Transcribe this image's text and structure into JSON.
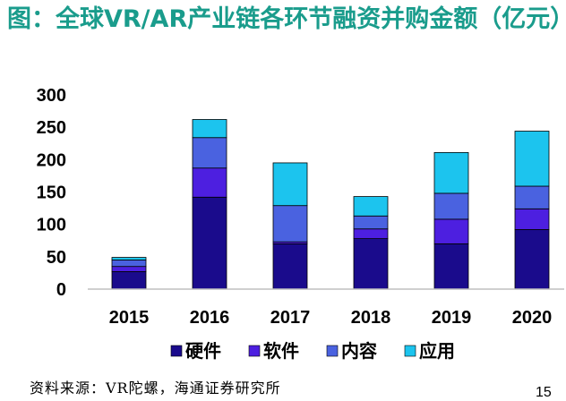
{
  "title": "图：全球VR/AR产业链各环节融资并购金额（亿元）",
  "source": "资料来源：VR陀螺，海通证券研究所",
  "page_number": "15",
  "chart_data": {
    "type": "bar",
    "stacked": true,
    "categories": [
      "2015",
      "2016",
      "2017",
      "2018",
      "2019",
      "2020"
    ],
    "ylim": [
      0,
      300
    ],
    "yticks": [
      0,
      50,
      100,
      150,
      200,
      250,
      300
    ],
    "series": [
      {
        "name": "硬件",
        "color": "#1a0b8c",
        "values": [
          27,
          142,
          70,
          78,
          70,
          92
        ]
      },
      {
        "name": "软件",
        "color": "#4d1fe0",
        "values": [
          8,
          45,
          3,
          15,
          38,
          32
        ]
      },
      {
        "name": "内容",
        "color": "#4a62e0",
        "values": [
          10,
          47,
          56,
          20,
          40,
          35
        ]
      },
      {
        "name": "应用",
        "color": "#1cc4ee",
        "values": [
          4,
          28,
          66,
          30,
          63,
          85
        ]
      }
    ],
    "legend_position": "bottom",
    "grid": false
  }
}
